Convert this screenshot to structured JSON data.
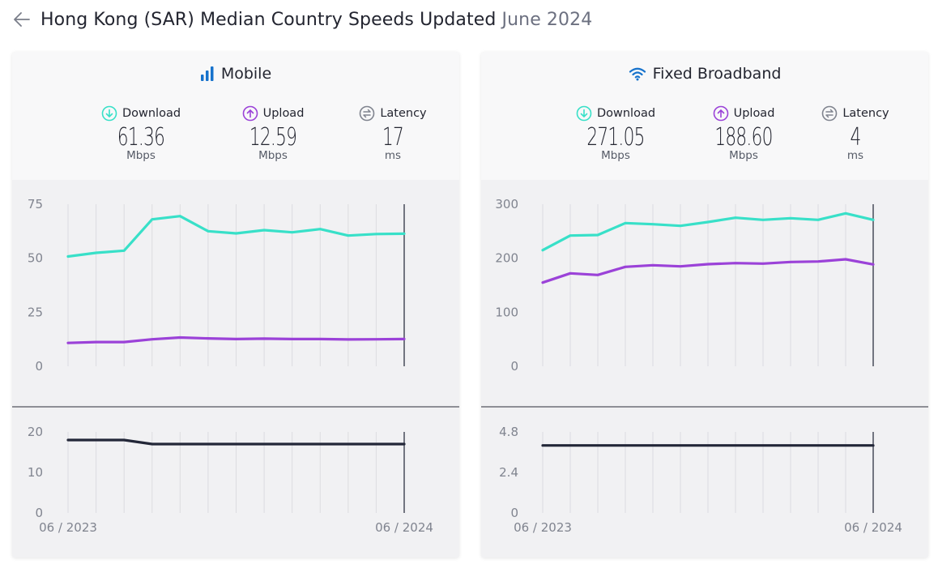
{
  "header": {
    "title": "Hong Kong (SAR) Median Country Speeds Updated",
    "date": "June 2024"
  },
  "colors": {
    "download": "#38e0c8",
    "upload": "#9b42d8",
    "latency": "#232738",
    "accent_blue": "#1672cc"
  },
  "panels": [
    {
      "title": "Mobile",
      "icon": "signal-bars-icon",
      "metrics": {
        "download": {
          "label": "Download",
          "value": "61.36",
          "unit": "Mbps"
        },
        "upload": {
          "label": "Upload",
          "value": "12.59",
          "unit": "Mbps"
        },
        "latency": {
          "label": "Latency",
          "value": "17",
          "unit": "ms"
        }
      }
    },
    {
      "title": "Fixed Broadband",
      "icon": "wifi-icon",
      "metrics": {
        "download": {
          "label": "Download",
          "value": "271.05",
          "unit": "Mbps"
        },
        "upload": {
          "label": "Upload",
          "value": "188.60",
          "unit": "Mbps"
        },
        "latency": {
          "label": "Latency",
          "value": "4",
          "unit": "ms"
        }
      }
    }
  ],
  "chart_data": [
    {
      "type": "line",
      "panel": "Mobile",
      "ylim": [
        0,
        75
      ],
      "yticks": [
        "75",
        "50",
        "25",
        "0"
      ],
      "x_start_label": "06 / 2023",
      "x_end_label": "06 / 2024",
      "series": [
        {
          "key": "download",
          "values": [
            50.8,
            52.5,
            53.5,
            68.0,
            69.5,
            62.5,
            61.5,
            63.0,
            62.0,
            63.5,
            60.5,
            61.2,
            61.36
          ]
        },
        {
          "key": "upload",
          "values": [
            10.8,
            11.2,
            11.2,
            12.5,
            13.3,
            12.9,
            12.6,
            12.8,
            12.6,
            12.6,
            12.4,
            12.5,
            12.59
          ]
        }
      ]
    },
    {
      "type": "line",
      "panel": "Mobile",
      "ylim": [
        0,
        20
      ],
      "yticks": [
        "20",
        "10",
        "0"
      ],
      "series": [
        {
          "key": "latency",
          "values": [
            18,
            18,
            18,
            17,
            17,
            17,
            17,
            17,
            17,
            17,
            17,
            17,
            17
          ]
        }
      ]
    },
    {
      "type": "line",
      "panel": "Fixed Broadband",
      "ylim": [
        0,
        300
      ],
      "yticks": [
        "300",
        "200",
        "100",
        "0"
      ],
      "x_start_label": "06 / 2023",
      "x_end_label": "06 / 2024",
      "series": [
        {
          "key": "download",
          "values": [
            215,
            242,
            243,
            265,
            263,
            260,
            267,
            275,
            271,
            274,
            271,
            283,
            271.05
          ]
        },
        {
          "key": "upload",
          "values": [
            155,
            172,
            169,
            184,
            187,
            185,
            189,
            191,
            190,
            193,
            194,
            198,
            188.6
          ]
        }
      ]
    },
    {
      "type": "line",
      "panel": "Fixed Broadband",
      "ylim": [
        0,
        4.8
      ],
      "yticks": [
        "4.8",
        "2.4",
        "0"
      ],
      "series": [
        {
          "key": "latency",
          "values": [
            4,
            4,
            4,
            4,
            4,
            4,
            4,
            4,
            4,
            4,
            4,
            4,
            4
          ]
        }
      ]
    }
  ]
}
